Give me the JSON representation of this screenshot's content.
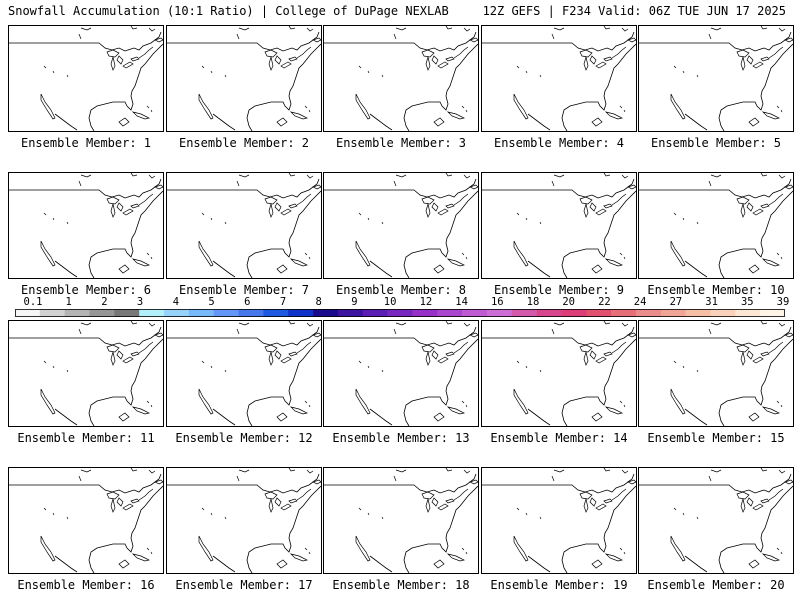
{
  "header": {
    "title": "Snowfall Accumulation (10:1 Ratio) | College of DuPage NEXLAB",
    "run_info": "12Z GEFS | F234 Valid: 06Z TUE JUN 17 2025"
  },
  "panels": [
    {
      "label": "Ensemble Member: 1"
    },
    {
      "label": "Ensemble Member: 2"
    },
    {
      "label": "Ensemble Member: 3"
    },
    {
      "label": "Ensemble Member: 4"
    },
    {
      "label": "Ensemble Member: 5"
    },
    {
      "label": "Ensemble Member: 6"
    },
    {
      "label": "Ensemble Member: 7"
    },
    {
      "label": "Ensemble Member: 8"
    },
    {
      "label": "Ensemble Member: 9"
    },
    {
      "label": "Ensemble Member: 10"
    },
    {
      "label": "Ensemble Member: 11"
    },
    {
      "label": "Ensemble Member: 12"
    },
    {
      "label": "Ensemble Member: 13"
    },
    {
      "label": "Ensemble Member: 14"
    },
    {
      "label": "Ensemble Member: 15"
    },
    {
      "label": "Ensemble Member: 16"
    },
    {
      "label": "Ensemble Member: 17"
    },
    {
      "label": "Ensemble Member: 18"
    },
    {
      "label": "Ensemble Member: 19"
    },
    {
      "label": "Ensemble Member: 20"
    }
  ],
  "colorbar": {
    "ticks": [
      "0.1",
      "1",
      "2",
      "3",
      "4",
      "5",
      "6",
      "7",
      "8",
      "9",
      "10",
      "12",
      "14",
      "16",
      "18",
      "20",
      "22",
      "24",
      "27",
      "31",
      "35",
      "39"
    ],
    "colors": [
      "#f6f6f6",
      "#d2d2d2",
      "#b4b4b4",
      "#969696",
      "#787878",
      "#b4f0fa",
      "#96d2fa",
      "#78b9fa",
      "#6496f5",
      "#4678eb",
      "#1e5ae1",
      "#0f32c8",
      "#1a0a8c",
      "#3c14a0",
      "#5a1eb4",
      "#7828be",
      "#9632c8",
      "#aa46cd",
      "#be5ad2",
      "#cd6ed7",
      "#d25aaa",
      "#d7468c",
      "#dc3c78",
      "#e1506e",
      "#e66e78",
      "#eb8c8c",
      "#f0a596",
      "#f5bea5",
      "#fad2b9",
      "#fde6d2",
      "#fff5e6"
    ]
  }
}
